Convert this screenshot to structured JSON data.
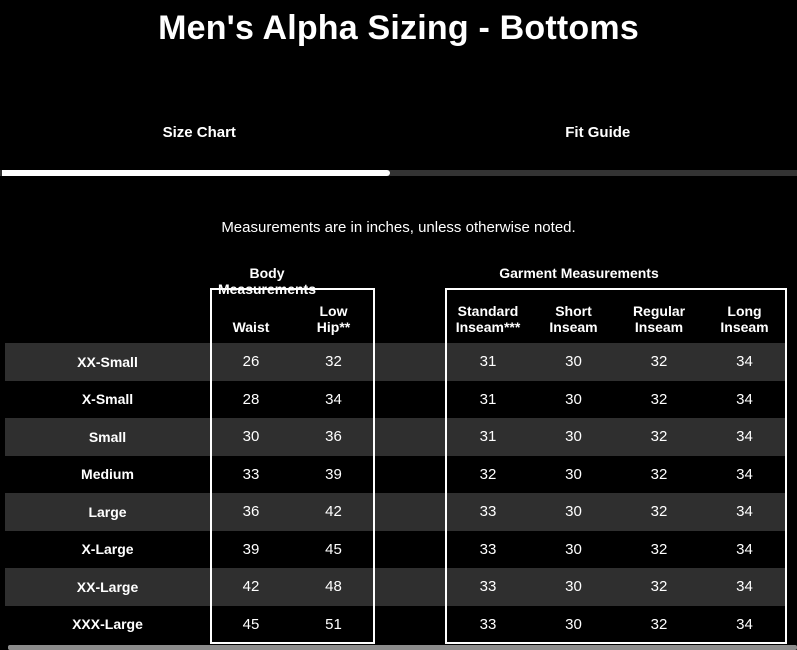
{
  "page": {
    "title": "Men's Alpha Sizing - Bottoms"
  },
  "tabs": {
    "size_chart": {
      "label": "Size Chart",
      "active": true
    },
    "fit_guide": {
      "label": "Fit Guide",
      "active": false
    }
  },
  "note": "Measurements are in inches, unless otherwise noted.",
  "table": {
    "group_labels": {
      "body": "Body Measurements",
      "garment": "Garment Measurements"
    },
    "columns": {
      "waist": "Waist",
      "low_hip": "Low\nHip**",
      "standard_inseam": "Standard\nInseam***",
      "short_inseam": "Short\nInseam",
      "regular_inseam": "Regular\nInseam",
      "long_inseam": "Long\nInseam"
    },
    "rows": [
      {
        "size": "XX-Small",
        "values": [
          "26",
          "32",
          "31",
          "30",
          "32",
          "34"
        ]
      },
      {
        "size": "X-Small",
        "values": [
          "28",
          "34",
          "31",
          "30",
          "32",
          "34"
        ]
      },
      {
        "size": "Small",
        "values": [
          "30",
          "36",
          "31",
          "30",
          "32",
          "34"
        ]
      },
      {
        "size": "Medium",
        "values": [
          "33",
          "39",
          "32",
          "30",
          "32",
          "34"
        ]
      },
      {
        "size": "Large",
        "values": [
          "36",
          "42",
          "33",
          "30",
          "32",
          "34"
        ]
      },
      {
        "size": "X-Large",
        "values": [
          "39",
          "45",
          "33",
          "30",
          "32",
          "34"
        ]
      },
      {
        "size": "XX-Large",
        "values": [
          "42",
          "48",
          "33",
          "30",
          "32",
          "34"
        ]
      },
      {
        "size": "XXX-Large",
        "values": [
          "45",
          "51",
          "33",
          "30",
          "32",
          "34"
        ]
      }
    ]
  },
  "colors": {
    "background": "#000000",
    "stripe": "#2f2f2f",
    "text": "#ffffff",
    "active_underline": "#ffffff",
    "inactive_underline": "#333333",
    "box_border": "#ffffff",
    "scrollbar": "#8c8c8c"
  }
}
